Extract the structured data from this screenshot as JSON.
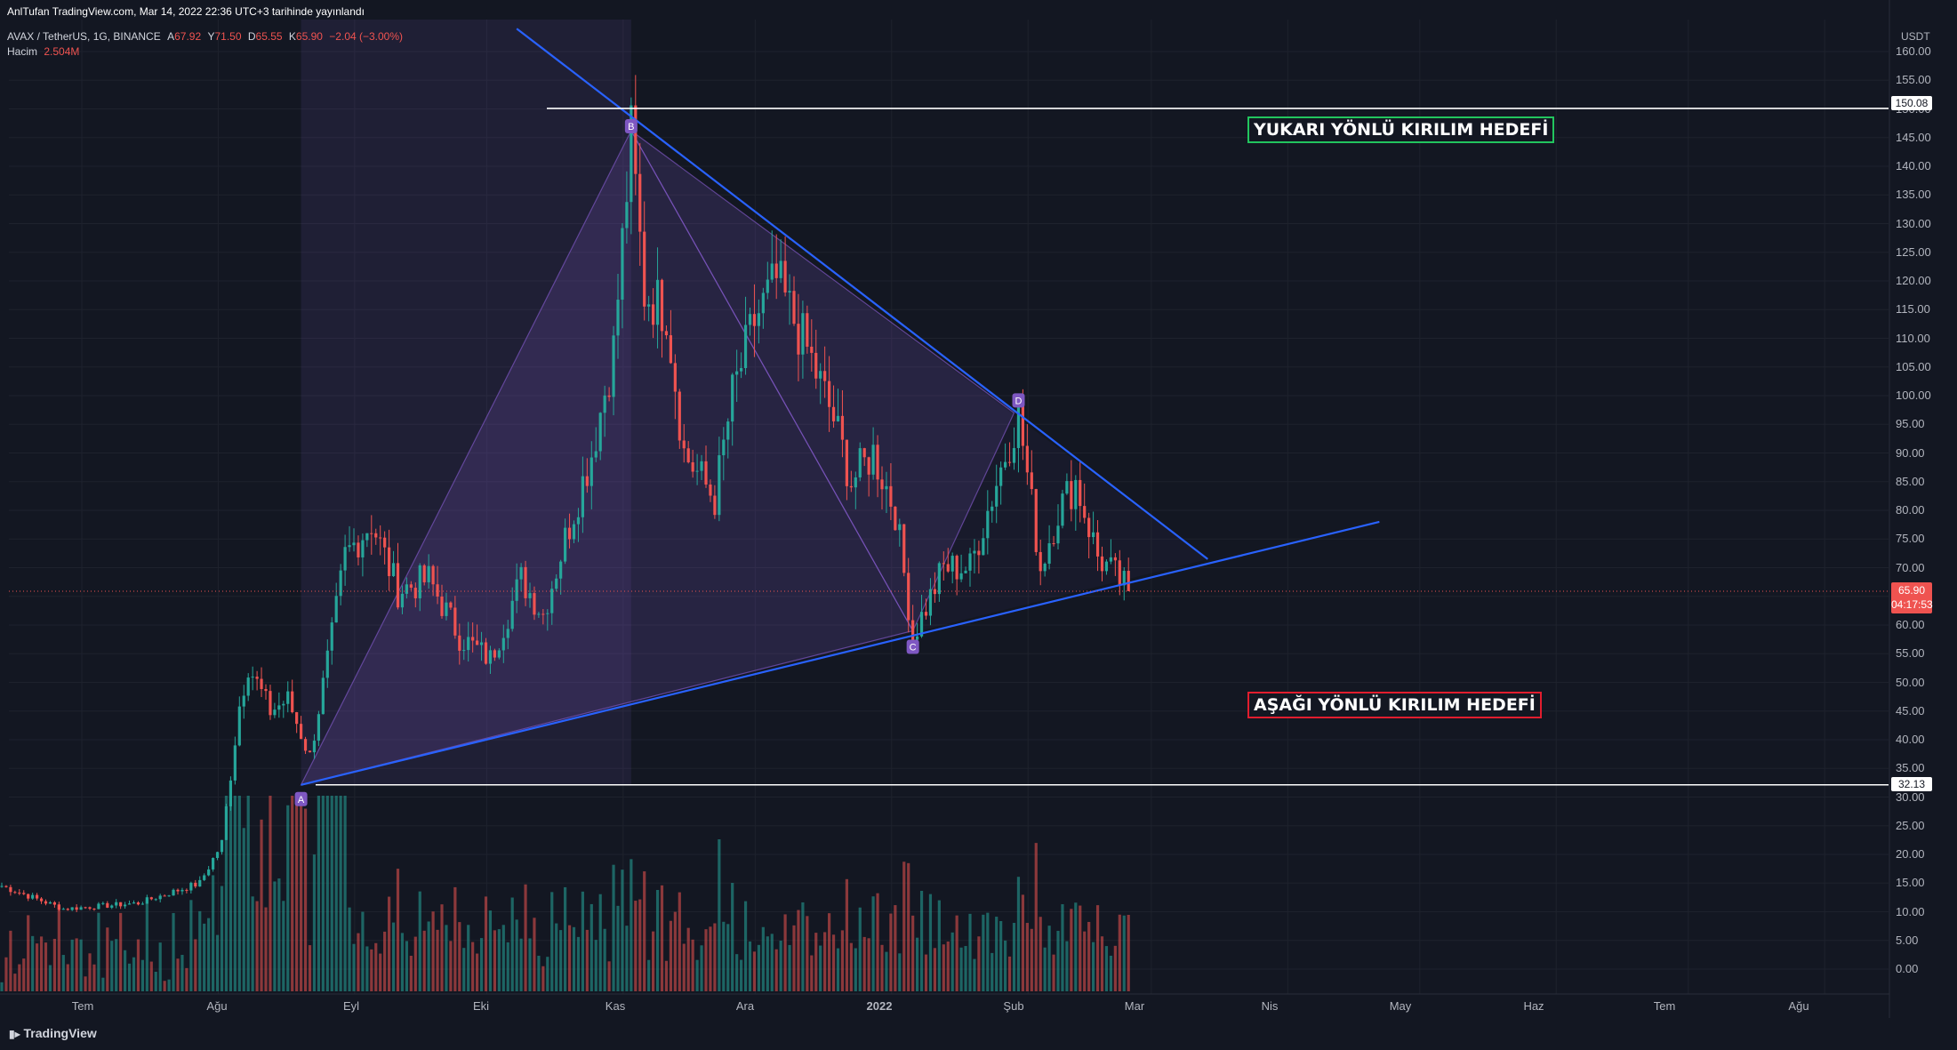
{
  "header": {
    "published": "AnlTufan TradingView.com, Mar 14, 2022 22:36 UTC+3 tarihinde yayınlandı",
    "symbol": "AVAX / TetherUS, 1G, BINANCE",
    "ohlc": {
      "a_label": "A",
      "a": "67.92",
      "y_label": "Y",
      "y": "71.50",
      "d_label": "D",
      "d": "65.55",
      "k_label": "K",
      "k": "65.90",
      "change": "−2.04 (−3.00%)"
    },
    "volume_label": "Hacim",
    "volume_value": "2.504M"
  },
  "price_axis": {
    "currency": "USDT",
    "ticks": [
      "160.00",
      "155.00",
      "150.00",
      "145.00",
      "140.00",
      "135.00",
      "130.00",
      "125.00",
      "120.00",
      "115.00",
      "110.00",
      "105.00",
      "100.00",
      "95.00",
      "90.00",
      "85.00",
      "80.00",
      "75.00",
      "70.00",
      "65.00",
      "60.00",
      "55.00",
      "50.00",
      "45.00",
      "40.00",
      "35.00",
      "30.00",
      "25.00",
      "20.00",
      "15.00",
      "10.00",
      "5.00",
      "0.00"
    ],
    "current_price": "65.90",
    "countdown": "04:17:53",
    "level_high": "150.08",
    "level_low": "32.13"
  },
  "time_axis": {
    "labels": [
      "Tem",
      "Ağu",
      "Eyl",
      "Eki",
      "Kas",
      "Ara",
      "2022",
      "Şub",
      "Mar",
      "Nis",
      "May",
      "Haz",
      "Tem",
      "Ağu"
    ]
  },
  "annotations": {
    "upper_target": "YUKARI YÖNLÜ KIRILIM HEDEFİ",
    "lower_target": "AŞAĞI YÖNLÜ KIRILIM HEDEFİ",
    "points": [
      "A",
      "B",
      "C",
      "D"
    ]
  },
  "colors": {
    "up": "#26a69a",
    "down": "#ef5350",
    "pattern": "#7e57c2",
    "trendline": "#2962ff",
    "bg": "#131722"
  },
  "branding": "TradingView",
  "chart_data": {
    "type": "candlestick",
    "symbol": "AVAX/USDT",
    "interval": "1D",
    "ylim": [
      0,
      160
    ],
    "anchors": [
      {
        "date": "2021-07-01",
        "price": 14.5
      },
      {
        "date": "2021-07-15",
        "price": 10.5
      },
      {
        "date": "2021-08-01",
        "price": 11.5
      },
      {
        "date": "2021-08-15",
        "price": 15
      },
      {
        "date": "2021-08-20",
        "price": 22
      },
      {
        "date": "2021-08-24",
        "price": 46
      },
      {
        "date": "2021-08-26",
        "price": 53
      },
      {
        "date": "2021-08-31",
        "price": 45
      },
      {
        "date": "2021-09-04",
        "price": 47
      },
      {
        "date": "2021-09-09",
        "price": 37
      },
      {
        "date": "2021-09-14",
        "price": 58
      },
      {
        "date": "2021-09-17",
        "price": 72
      },
      {
        "date": "2021-09-23",
        "price": 78
      },
      {
        "date": "2021-09-29",
        "price": 66
      },
      {
        "date": "2021-10-06",
        "price": 68
      },
      {
        "date": "2021-10-13",
        "price": 58
      },
      {
        "date": "2021-10-20",
        "price": 54
      },
      {
        "date": "2021-10-27",
        "price": 68
      },
      {
        "date": "2021-11-01",
        "price": 62
      },
      {
        "date": "2021-11-06",
        "price": 75
      },
      {
        "date": "2021-11-12",
        "price": 90
      },
      {
        "date": "2021-11-17",
        "price": 108
      },
      {
        "date": "2021-11-21",
        "price": 145
      },
      {
        "date": "2021-11-24",
        "price": 118
      },
      {
        "date": "2021-11-29",
        "price": 115
      },
      {
        "date": "2021-12-03",
        "price": 90
      },
      {
        "date": "2021-12-10",
        "price": 82
      },
      {
        "date": "2021-12-14",
        "price": 100
      },
      {
        "date": "2021-12-19",
        "price": 113
      },
      {
        "date": "2021-12-24",
        "price": 120
      },
      {
        "date": "2021-12-31",
        "price": 108
      },
      {
        "date": "2022-01-06",
        "price": 96
      },
      {
        "date": "2022-01-10",
        "price": 85
      },
      {
        "date": "2022-01-15",
        "price": 90
      },
      {
        "date": "2022-01-20",
        "price": 80
      },
      {
        "date": "2022-01-24",
        "price": 58
      },
      {
        "date": "2022-01-31",
        "price": 70
      },
      {
        "date": "2022-02-06",
        "price": 70
      },
      {
        "date": "2022-02-12",
        "price": 85
      },
      {
        "date": "2022-02-17",
        "price": 97
      },
      {
        "date": "2022-02-22",
        "price": 70
      },
      {
        "date": "2022-02-26",
        "price": 80
      },
      {
        "date": "2022-03-02",
        "price": 85
      },
      {
        "date": "2022-03-07",
        "price": 72
      },
      {
        "date": "2022-03-14",
        "price": 65.9
      }
    ],
    "pattern_points": [
      {
        "label": "A",
        "date": "2021-09-07",
        "price": 32.13
      },
      {
        "label": "B",
        "date": "2021-11-21",
        "price": 146.2
      },
      {
        "label": "C",
        "date": "2022-01-24",
        "price": 59
      },
      {
        "label": "D",
        "date": "2022-02-16",
        "price": 97
      }
    ],
    "horizontal_levels": [
      150.08,
      32.13
    ],
    "resistance_line": [
      {
        "date": "2021-10-26",
        "price": 164
      },
      {
        "date": "2022-04-01",
        "price": 71.5
      }
    ],
    "support_line": [
      {
        "date": "2021-09-07",
        "price": 32.13
      },
      {
        "date": "2022-05-10",
        "price": 78
      }
    ],
    "last_close": 65.9
  }
}
